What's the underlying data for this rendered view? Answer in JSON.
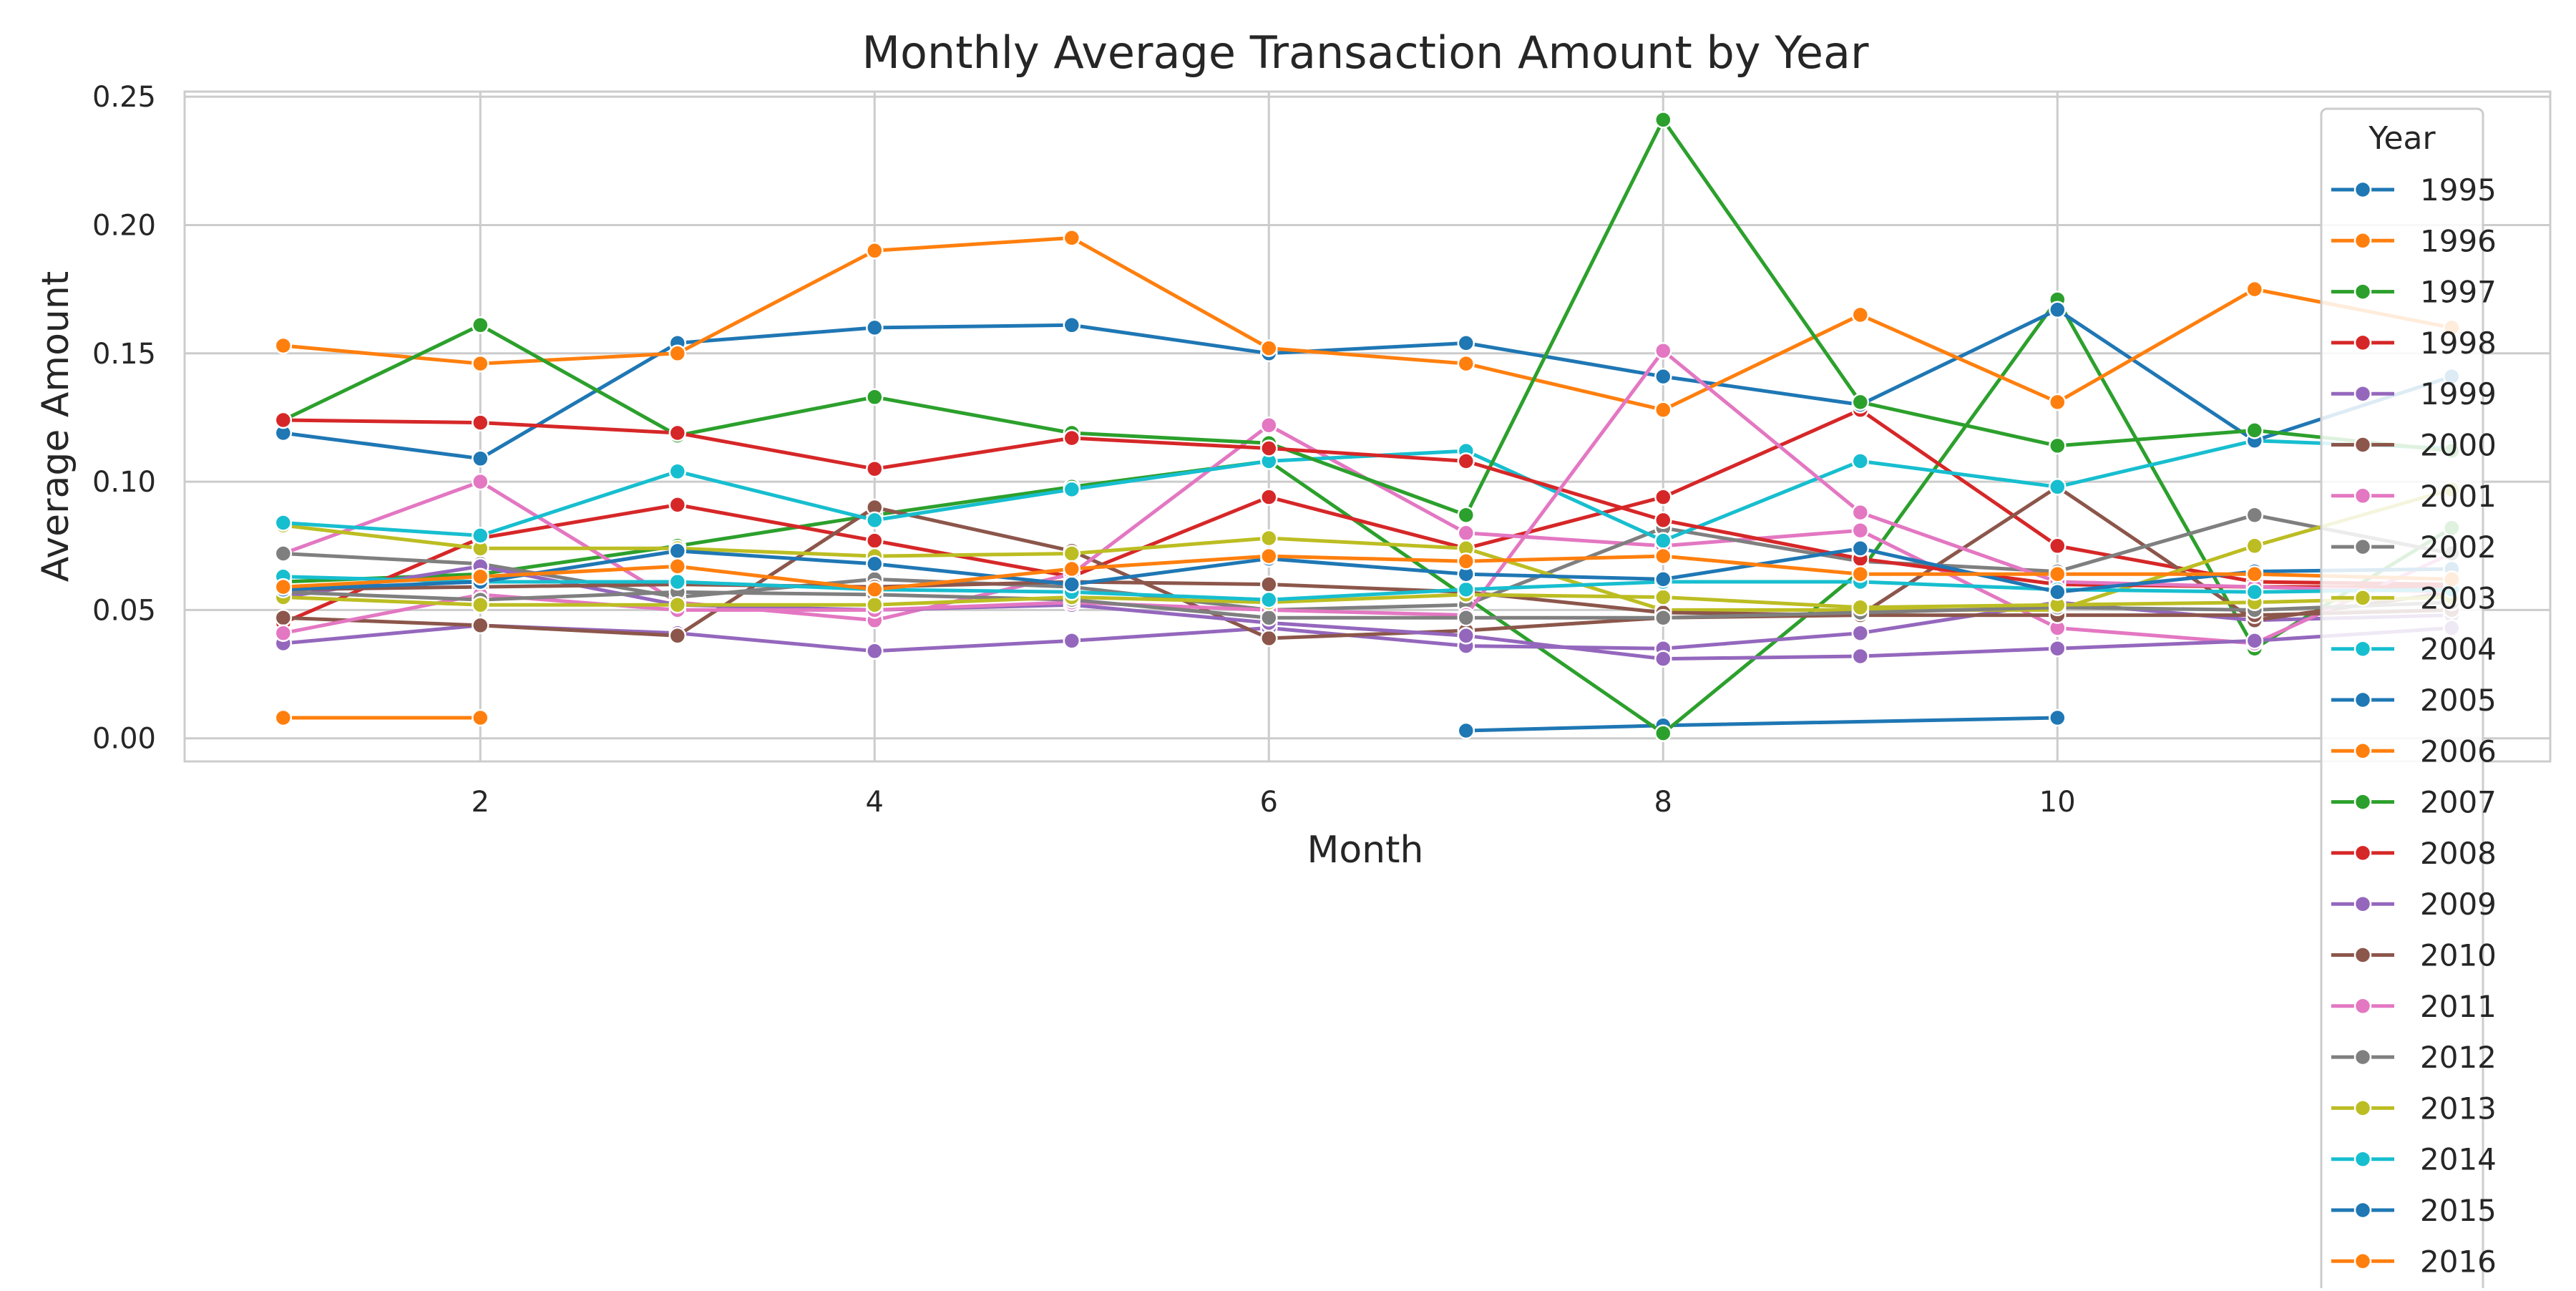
{
  "chart_data": {
    "type": "line",
    "title": "Monthly Average Transaction Amount by Year",
    "xlabel": "Month",
    "ylabel": "Average Amount",
    "xlim": [
      0.5,
      12.5
    ],
    "ylim": [
      -0.009,
      0.252
    ],
    "xticks": [
      2,
      4,
      6,
      8,
      10
    ],
    "yticks": [
      0.0,
      0.05,
      0.1,
      0.15,
      0.2,
      0.25
    ],
    "ytick_labels": [
      "0.00",
      "0.05",
      "0.10",
      "0.15",
      "0.20",
      "0.25"
    ],
    "grid": true,
    "legend": {
      "title": "Year",
      "placement": "top-right"
    },
    "x": [
      1,
      2,
      3,
      4,
      5,
      6,
      7,
      8,
      9,
      10,
      11,
      12
    ],
    "series": [
      {
        "name": "1995",
        "color": "#1f77b4",
        "values": [
          null,
          null,
          null,
          null,
          null,
          null,
          0.003,
          0.005,
          null,
          0.008,
          null,
          null
        ]
      },
      {
        "name": "1996",
        "color": "#ff7f0e",
        "values": [
          0.008,
          0.008,
          null,
          null,
          null,
          null,
          null,
          null,
          null,
          null,
          null,
          null
        ]
      },
      {
        "name": "1997",
        "color": "#2ca02c",
        "values": [
          0.061,
          0.064,
          0.075,
          0.087,
          0.098,
          0.108,
          0.055,
          0.002,
          0.065,
          0.171,
          0.035,
          0.082
        ]
      },
      {
        "name": "1998",
        "color": "#d62728",
        "values": [
          0.045,
          0.078,
          0.091,
          0.077,
          0.063,
          0.094,
          0.074,
          0.094,
          0.128,
          0.075,
          0.061,
          0.06
        ]
      },
      {
        "name": "1999",
        "color": "#9467bd",
        "values": [
          0.037,
          0.044,
          0.041,
          0.034,
          0.038,
          0.043,
          0.036,
          0.035,
          0.041,
          0.053,
          0.046,
          0.048
        ]
      },
      {
        "name": "2000",
        "color": "#8c564b",
        "values": [
          0.047,
          0.044,
          0.04,
          0.09,
          0.073,
          0.039,
          0.042,
          0.047,
          0.048,
          0.098,
          0.046,
          0.057
        ]
      },
      {
        "name": "2001",
        "color": "#e377c2",
        "values": [
          0.072,
          0.1,
          0.053,
          0.046,
          0.064,
          0.122,
          0.08,
          0.075,
          0.081,
          0.043,
          0.037,
          0.072
        ]
      },
      {
        "name": "2002",
        "color": "#7f7f7f",
        "values": [
          0.072,
          0.068,
          0.055,
          0.062,
          0.059,
          0.05,
          0.052,
          0.082,
          0.069,
          0.065,
          0.087,
          0.072
        ]
      },
      {
        "name": "2003",
        "color": "#bcbd22",
        "values": [
          0.083,
          0.074,
          0.074,
          0.071,
          0.072,
          0.078,
          0.074,
          0.05,
          0.05,
          0.05,
          0.075,
          0.097
        ]
      },
      {
        "name": "2004",
        "color": "#17becf",
        "values": [
          0.084,
          0.079,
          0.104,
          0.085,
          0.097,
          0.108,
          0.112,
          0.077,
          0.108,
          0.098,
          0.116,
          0.113
        ]
      },
      {
        "name": "2005",
        "color": "#1f77b4",
        "values": [
          0.119,
          0.109,
          0.154,
          0.16,
          0.161,
          0.15,
          0.154,
          0.141,
          0.13,
          0.167,
          0.116,
          0.141
        ]
      },
      {
        "name": "2006",
        "color": "#ff7f0e",
        "values": [
          0.153,
          0.146,
          0.15,
          0.19,
          0.195,
          0.152,
          0.146,
          0.128,
          0.165,
          0.131,
          0.175,
          0.16
        ]
      },
      {
        "name": "2007",
        "color": "#2ca02c",
        "values": [
          0.124,
          0.161,
          0.118,
          0.133,
          0.119,
          0.115,
          0.087,
          0.241,
          0.131,
          0.114,
          0.12,
          0.112
        ]
      },
      {
        "name": "2008",
        "color": "#d62728",
        "values": [
          0.124,
          0.123,
          0.119,
          0.105,
          0.117,
          0.113,
          0.108,
          0.085,
          0.07,
          0.06,
          0.059,
          0.059
        ]
      },
      {
        "name": "2009",
        "color": "#9467bd",
        "values": [
          0.055,
          0.067,
          0.052,
          0.05,
          0.052,
          0.045,
          0.04,
          0.031,
          0.032,
          0.035,
          0.038,
          0.043
        ]
      },
      {
        "name": "2010",
        "color": "#8c564b",
        "values": [
          0.058,
          0.059,
          0.06,
          0.059,
          0.061,
          0.06,
          0.057,
          0.049,
          0.048,
          0.048,
          0.048,
          0.05
        ]
      },
      {
        "name": "2011",
        "color": "#e377c2",
        "values": [
          0.041,
          0.056,
          0.05,
          0.05,
          0.053,
          0.05,
          0.048,
          0.151,
          0.088,
          0.061,
          0.059,
          0.057
        ]
      },
      {
        "name": "2012",
        "color": "#7f7f7f",
        "values": [
          0.057,
          0.054,
          0.057,
          0.056,
          0.054,
          0.047,
          0.047,
          0.047,
          0.049,
          0.051,
          0.05,
          0.053
        ]
      },
      {
        "name": "2013",
        "color": "#bcbd22",
        "values": [
          0.055,
          0.052,
          0.052,
          0.052,
          0.055,
          0.053,
          0.056,
          0.055,
          0.051,
          0.052,
          0.053,
          0.055
        ]
      },
      {
        "name": "2014",
        "color": "#17becf",
        "values": [
          0.063,
          0.061,
          0.061,
          0.058,
          0.057,
          0.054,
          0.058,
          0.061,
          0.061,
          0.058,
          0.057,
          0.058
        ]
      },
      {
        "name": "2015",
        "color": "#1f77b4",
        "values": [
          0.058,
          0.061,
          0.073,
          0.068,
          0.06,
          0.07,
          0.064,
          0.062,
          0.074,
          0.057,
          0.065,
          0.066
        ]
      },
      {
        "name": "2016",
        "color": "#ff7f0e",
        "values": [
          0.059,
          0.063,
          0.067,
          0.058,
          0.066,
          0.071,
          0.069,
          0.071,
          0.064,
          0.064,
          0.064,
          0.062
        ]
      }
    ]
  }
}
